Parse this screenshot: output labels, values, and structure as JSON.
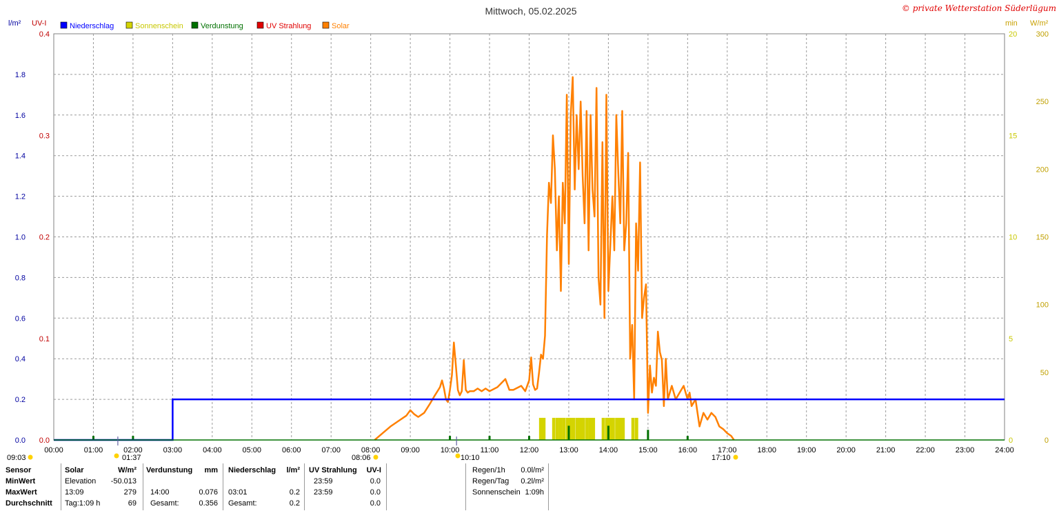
{
  "header": {
    "title": "Mittwoch, 05.02.2025",
    "copyright": "© private Wetterstation Süderlügum",
    "left_units": [
      "l/m²",
      "UV-I"
    ],
    "right_units": [
      "min",
      "W/m²"
    ]
  },
  "legend": [
    {
      "label": "Niederschlag",
      "color": "#0000ff",
      "text_color": "#0000ff"
    },
    {
      "label": "Sonnenschein",
      "color": "#d4d400",
      "text_color": "#c8c800"
    },
    {
      "label": "Verdunstung",
      "color": "#007000",
      "text_color": "#007000"
    },
    {
      "label": "UV Strahlung",
      "color": "#e00000",
      "text_color": "#e00000"
    },
    {
      "label": "Solar",
      "color": "#ff8000",
      "text_color": "#ff8000"
    }
  ],
  "chart_data": {
    "type": "line",
    "x_axis": {
      "range": [
        0,
        24
      ],
      "tick_labels": [
        "00:00",
        "01:00",
        "02:00",
        "03:00",
        "04:00",
        "05:00",
        "06:00",
        "07:00",
        "08:00",
        "09:00",
        "10:00",
        "11:00",
        "12:00",
        "13:00",
        "14:00",
        "15:00",
        "16:00",
        "17:00",
        "18:00",
        "19:00",
        "20:00",
        "21:00",
        "22:00",
        "23:00",
        "24:00"
      ]
    },
    "axes": {
      "precip": {
        "unit": "l/m²",
        "range": [
          0,
          2.0
        ],
        "ticks": [
          "0.0",
          "0.2",
          "0.4",
          "0.6",
          "0.8",
          "1.0",
          "1.2",
          "1.4",
          "1.6",
          "1.8"
        ],
        "color": "#0000a0"
      },
      "uv": {
        "unit": "UV-I",
        "range": [
          0,
          0.4
        ],
        "ticks": [
          "0.0",
          "0.1",
          "0.2",
          "0.3",
          "0.4"
        ],
        "color": "#c00000"
      },
      "sunshine": {
        "unit": "min",
        "range": [
          0,
          20
        ],
        "ticks": [
          "0",
          "5",
          "10",
          "15",
          "20"
        ],
        "color": "#c8c800"
      },
      "solar": {
        "unit": "W/m²",
        "range": [
          0,
          300
        ],
        "ticks": [
          "0",
          "50",
          "100",
          "150",
          "200",
          "250",
          "300"
        ],
        "color": "#c0a000"
      }
    },
    "markers": [
      {
        "time": "09:03",
        "hour": 0,
        "color": "#ffd200"
      },
      {
        "time": "01:37",
        "hour": 1.617,
        "color": "#ffd200"
      },
      {
        "time": "08:06",
        "hour": 8.1,
        "color": "#ffd200"
      },
      {
        "time": "10:10",
        "hour": 10.167,
        "color": "#ffd200"
      },
      {
        "time": "17:10",
        "hour": 17.167,
        "color": "#ffd200"
      }
    ],
    "series": [
      {
        "name": "Niederschlag",
        "axis": "precip",
        "color": "#0000ff",
        "kind": "step",
        "x": [
          0,
          3.0,
          3.0,
          24
        ],
        "y": [
          0,
          0,
          0.2,
          0.2
        ]
      },
      {
        "name": "Verdunstung",
        "axis": "precip",
        "color": "#007000",
        "kind": "spikes",
        "x": [
          1.0,
          2.0,
          10.0,
          11.0,
          12.0,
          13.0,
          14.0,
          15.0,
          16.0
        ],
        "y": [
          0.02,
          0.02,
          0.02,
          0.02,
          0.02,
          0.07,
          0.07,
          0.05,
          0.02
        ]
      },
      {
        "name": "Sonnenschein",
        "axis": "sunshine",
        "color": "#d4d400",
        "kind": "bars",
        "x": [
          12.25,
          12.33,
          12.58,
          12.67,
          12.75,
          12.83,
          12.92,
          13.0,
          13.08,
          13.17,
          13.25,
          13.33,
          13.42,
          13.5,
          13.58,
          13.83,
          13.92,
          14.0,
          14.08,
          14.17,
          14.25,
          14.33,
          14.58,
          14.67
        ],
        "y": [
          1.09,
          1.09,
          1.09,
          1.09,
          1.09,
          1.09,
          1.09,
          1.09,
          1.09,
          1.09,
          1.09,
          1.09,
          1.09,
          1.09,
          1.09,
          1.09,
          1.09,
          1.09,
          1.09,
          1.09,
          1.09,
          1.09,
          1.09,
          1.09
        ]
      },
      {
        "name": "Solar",
        "axis": "solar",
        "color": "#ff8000",
        "kind": "line",
        "x": [
          8.1,
          8.3,
          8.5,
          8.7,
          8.9,
          9.0,
          9.1,
          9.2,
          9.35,
          9.5,
          9.6,
          9.75,
          9.8,
          9.85,
          9.9,
          9.95,
          10.0,
          10.05,
          10.1,
          10.15,
          10.2,
          10.25,
          10.3,
          10.35,
          10.4,
          10.45,
          10.5,
          10.6,
          10.7,
          10.8,
          10.9,
          11.0,
          11.2,
          11.4,
          11.5,
          11.6,
          11.8,
          11.9,
          12.0,
          12.05,
          12.1,
          12.15,
          12.2,
          12.25,
          12.3,
          12.35,
          12.4,
          12.45,
          12.5,
          12.55,
          12.6,
          12.65,
          12.7,
          12.75,
          12.8,
          12.85,
          12.9,
          12.95,
          13.0,
          13.05,
          13.1,
          13.15,
          13.2,
          13.25,
          13.3,
          13.35,
          13.4,
          13.45,
          13.5,
          13.55,
          13.6,
          13.65,
          13.7,
          13.75,
          13.8,
          13.85,
          13.9,
          13.95,
          14.0,
          14.05,
          14.1,
          14.15,
          14.2,
          14.25,
          14.3,
          14.35,
          14.4,
          14.45,
          14.5,
          14.55,
          14.6,
          14.65,
          14.7,
          14.75,
          14.8,
          14.85,
          14.9,
          14.95,
          15.0,
          15.05,
          15.1,
          15.15,
          15.2,
          15.25,
          15.3,
          15.35,
          15.4,
          15.45,
          15.5,
          15.6,
          15.7,
          15.8,
          15.9,
          16.0,
          16.05,
          16.1,
          16.2,
          16.3,
          16.4,
          16.5,
          16.6,
          16.7,
          16.8,
          16.9,
          17.0,
          17.1,
          17.17
        ],
        "y": [
          0,
          5,
          10,
          14,
          18,
          22,
          19,
          17,
          20,
          27,
          32,
          39,
          44,
          38,
          30,
          28,
          37,
          48,
          72,
          55,
          37,
          33,
          36,
          59,
          37,
          35,
          36,
          36,
          38,
          36,
          38,
          36,
          39,
          45,
          37,
          37,
          40,
          36,
          44,
          61,
          41,
          37,
          38,
          50,
          63,
          60,
          77,
          151,
          190,
          175,
          225,
          200,
          140,
          180,
          110,
          190,
          160,
          255,
          130,
          240,
          268,
          185,
          240,
          200,
          250,
          195,
          160,
          243,
          140,
          240,
          185,
          165,
          260,
          120,
          100,
          220,
          90,
          255,
          110,
          145,
          180,
          140,
          240,
          197,
          160,
          243,
          140,
          160,
          212,
          60,
          85,
          30,
          160,
          125,
          205,
          90,
          105,
          115,
          20,
          55,
          35,
          46,
          40,
          80,
          65,
          59,
          25,
          60,
          30,
          40,
          30,
          35,
          40,
          30,
          35,
          25,
          30,
          10,
          20,
          15,
          20,
          17,
          10,
          8,
          5,
          3,
          0
        ]
      }
    ]
  },
  "stats": {
    "header": [
      "Sensor",
      "Solar",
      "W/m²",
      "Verdunstung",
      "mm",
      "Niederschlag",
      "l/m²",
      "UV Strahlung",
      "UV-I"
    ],
    "rows": [
      {
        "label": "MinWert",
        "solar_time": "Elevation",
        "solar_val": "-50.013",
        "verd_time": "",
        "verd_val": "",
        "nied_time": "",
        "nied_val": "",
        "uv_time": "23:59",
        "uv_val": "0.0"
      },
      {
        "label": "MaxWert",
        "solar_time": "13:09",
        "solar_val": "279",
        "verd_time": "14:00",
        "verd_val": "0.076",
        "nied_time": "03:01",
        "nied_val": "0.2",
        "uv_time": "23:59",
        "uv_val": "0.0"
      },
      {
        "label": "Durchschnitt",
        "solar_time": "Tag:1:09 h",
        "solar_val": "69",
        "verd_time": "Gesamt:",
        "verd_val": "0.356",
        "nied_time": "Gesamt:",
        "nied_val": "0.2",
        "uv_time": "",
        "uv_val": "0.0"
      }
    ],
    "summary": [
      {
        "label": "Regen/1h",
        "value": "0.0l/m²"
      },
      {
        "label": "Regen/Tag",
        "value": "0.2l/m²"
      },
      {
        "label": "Sonnenschein",
        "value": "1:09h"
      }
    ]
  }
}
